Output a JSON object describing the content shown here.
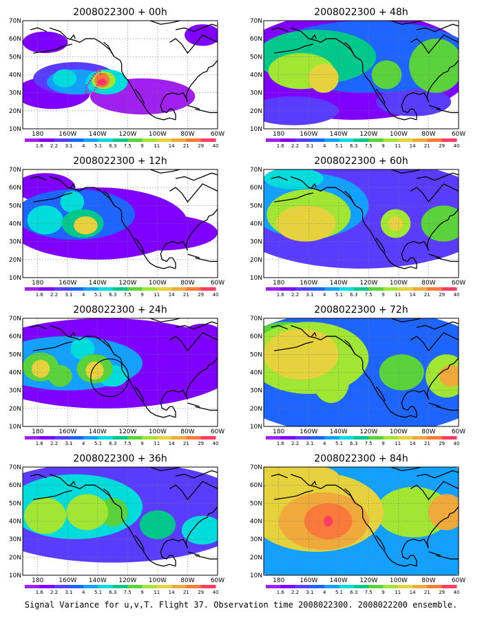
{
  "caption": "Signal Variance for u,v,T. Flight 37. Observation time 2008022300. 2008022200 ensemble.",
  "chart_data": {
    "type": "heatmap",
    "grid": "dotted",
    "colorbar": {
      "levels": [
        "1.6",
        "2.2",
        "3.1",
        "4",
        "5.1",
        "6.3",
        "7.5",
        "9",
        "11",
        "14",
        "21",
        "29",
        "40"
      ],
      "colors": [
        "#ffffff",
        "#a020f0",
        "#7f00ff",
        "#5a3cff",
        "#1e64ff",
        "#14a0ff",
        "#00dcdc",
        "#00c88c",
        "#5ad23c",
        "#a0e632",
        "#e6d23c",
        "#f0aa3c",
        "#fa7a3c",
        "#ff3c64"
      ]
    },
    "x_ticks": [
      "180",
      "160W",
      "140W",
      "120W",
      "100W",
      "80W",
      "60W"
    ],
    "y_ticks": [
      "10N",
      "20N",
      "30N",
      "40N",
      "50N",
      "60N",
      "70N"
    ],
    "xlim": [
      170,
      300
    ],
    "ylim": [
      10,
      70
    ],
    "panels": [
      {
        "title": "2008022300 + 00h",
        "blobs": [
          {
            "x": 190,
            "y": 30,
            "rx": 25,
            "ry": 9,
            "v": 2
          },
          {
            "x": 250,
            "y": 28,
            "rx": 35,
            "ry": 10,
            "v": 1
          },
          {
            "x": 185,
            "y": 58,
            "rx": 15,
            "ry": 6,
            "v": 2
          },
          {
            "x": 290,
            "y": 62,
            "rx": 12,
            "ry": 6,
            "v": 2
          },
          {
            "x": 205,
            "y": 38,
            "rx": 28,
            "ry": 9,
            "v": 3
          },
          {
            "x": 206,
            "y": 36,
            "rx": 20,
            "ry": 7,
            "v": 5
          },
          {
            "x": 198,
            "y": 38,
            "rx": 8,
            "ry": 5,
            "v": 6
          },
          {
            "x": 226,
            "y": 36,
            "rx": 14,
            "ry": 7,
            "v": 6
          },
          {
            "x": 224,
            "y": 37,
            "rx": 8,
            "ry": 5,
            "v": 9
          },
          {
            "x": 223,
            "y": 37,
            "rx": 5,
            "ry": 4,
            "v": 12
          },
          {
            "x": 223,
            "y": 36,
            "rx": 3,
            "ry": 2,
            "v": 13
          }
        ],
        "track": [
          [
            222,
            40
          ],
          [
            221,
            43
          ],
          [
            217,
            39
          ],
          [
            213,
            34
          ],
          [
            212,
            30
          ],
          [
            216,
            29
          ],
          [
            219,
            33
          ],
          [
            221,
            36
          ]
        ]
      },
      {
        "title": "2008022300 + 48h",
        "blobs": [
          {
            "x": 230,
            "y": 45,
            "rx": 80,
            "ry": 30,
            "v": 2
          },
          {
            "x": 240,
            "y": 50,
            "rx": 70,
            "ry": 20,
            "v": 4
          },
          {
            "x": 205,
            "y": 50,
            "rx": 40,
            "ry": 15,
            "v": 7
          },
          {
            "x": 195,
            "y": 42,
            "rx": 22,
            "ry": 10,
            "v": 9
          },
          {
            "x": 210,
            "y": 38,
            "rx": 10,
            "ry": 8,
            "v": 10
          },
          {
            "x": 285,
            "y": 45,
            "rx": 18,
            "ry": 15,
            "v": 8
          },
          {
            "x": 252,
            "y": 40,
            "rx": 10,
            "ry": 8,
            "v": 8
          },
          {
            "x": 190,
            "y": 20,
            "rx": 30,
            "ry": 8,
            "v": 3
          },
          {
            "x": 270,
            "y": 25,
            "rx": 25,
            "ry": 8,
            "v": 3
          }
        ],
        "track": []
      },
      {
        "title": "2008022300 + 12h",
        "blobs": [
          {
            "x": 220,
            "y": 40,
            "rx": 60,
            "ry": 20,
            "v": 2
          },
          {
            "x": 185,
            "y": 60,
            "rx": 20,
            "ry": 8,
            "v": 2
          },
          {
            "x": 260,
            "y": 35,
            "rx": 40,
            "ry": 10,
            "v": 2
          },
          {
            "x": 205,
            "y": 45,
            "rx": 40,
            "ry": 14,
            "v": 4
          },
          {
            "x": 185,
            "y": 42,
            "rx": 12,
            "ry": 8,
            "v": 6
          },
          {
            "x": 210,
            "y": 40,
            "rx": 14,
            "ry": 8,
            "v": 7
          },
          {
            "x": 212,
            "y": 39,
            "rx": 8,
            "ry": 5,
            "v": 10
          },
          {
            "x": 203,
            "y": 52,
            "rx": 8,
            "ry": 6,
            "v": 6
          }
        ],
        "track": []
      },
      {
        "title": "2008022300 + 60h",
        "blobs": [
          {
            "x": 235,
            "y": 45,
            "rx": 90,
            "ry": 30,
            "v": 3
          },
          {
            "x": 200,
            "y": 50,
            "rx": 40,
            "ry": 18,
            "v": 5
          },
          {
            "x": 200,
            "y": 45,
            "rx": 28,
            "ry": 14,
            "v": 9
          },
          {
            "x": 198,
            "y": 40,
            "rx": 20,
            "ry": 10,
            "v": 10
          },
          {
            "x": 258,
            "y": 40,
            "rx": 10,
            "ry": 8,
            "v": 9
          },
          {
            "x": 258,
            "y": 40,
            "rx": 5,
            "ry": 4,
            "v": 10
          },
          {
            "x": 290,
            "y": 40,
            "rx": 15,
            "ry": 10,
            "v": 8
          },
          {
            "x": 190,
            "y": 65,
            "rx": 20,
            "ry": 6,
            "v": 6
          }
        ],
        "track": []
      },
      {
        "title": "2008022300 + 24h",
        "blobs": [
          {
            "x": 225,
            "y": 45,
            "rx": 90,
            "ry": 25,
            "v": 2
          },
          {
            "x": 200,
            "y": 45,
            "rx": 50,
            "ry": 15,
            "v": 5
          },
          {
            "x": 182,
            "y": 43,
            "rx": 12,
            "ry": 8,
            "v": 8
          },
          {
            "x": 182,
            "y": 42,
            "rx": 6,
            "ry": 5,
            "v": 10
          },
          {
            "x": 195,
            "y": 38,
            "rx": 8,
            "ry": 6,
            "v": 8
          },
          {
            "x": 218,
            "y": 42,
            "rx": 12,
            "ry": 8,
            "v": 8
          },
          {
            "x": 218,
            "y": 41,
            "rx": 6,
            "ry": 5,
            "v": 10
          },
          {
            "x": 210,
            "y": 53,
            "rx": 8,
            "ry": 6,
            "v": 6
          },
          {
            "x": 230,
            "y": 38,
            "rx": 10,
            "ry": 6,
            "v": 6
          },
          {
            "x": 290,
            "y": 62,
            "rx": 12,
            "ry": 5,
            "v": 2
          }
        ],
        "track": [],
        "circle": {
          "x": 228,
          "y": 37,
          "r": 9
        }
      },
      {
        "title": "2008022300 + 72h",
        "blobs": [
          {
            "x": 235,
            "y": 40,
            "rx": 95,
            "ry": 35,
            "v": 4
          },
          {
            "x": 200,
            "y": 48,
            "rx": 40,
            "ry": 20,
            "v": 9
          },
          {
            "x": 195,
            "y": 50,
            "rx": 25,
            "ry": 14,
            "v": 10
          },
          {
            "x": 215,
            "y": 35,
            "rx": 12,
            "ry": 12,
            "v": 9
          },
          {
            "x": 262,
            "y": 40,
            "rx": 15,
            "ry": 10,
            "v": 8
          },
          {
            "x": 292,
            "y": 38,
            "rx": 14,
            "ry": 12,
            "v": 9
          },
          {
            "x": 295,
            "y": 38,
            "rx": 8,
            "ry": 6,
            "v": 11
          },
          {
            "x": 185,
            "y": 60,
            "rx": 20,
            "ry": 8,
            "v": 8
          }
        ],
        "track": []
      },
      {
        "title": "2008022300 + 36h",
        "blobs": [
          {
            "x": 230,
            "y": 45,
            "rx": 95,
            "ry": 28,
            "v": 3
          },
          {
            "x": 205,
            "y": 48,
            "rx": 45,
            "ry": 18,
            "v": 6
          },
          {
            "x": 185,
            "y": 43,
            "rx": 14,
            "ry": 10,
            "v": 9
          },
          {
            "x": 213,
            "y": 45,
            "rx": 14,
            "ry": 10,
            "v": 9
          },
          {
            "x": 230,
            "y": 45,
            "rx": 10,
            "ry": 8,
            "v": 8
          },
          {
            "x": 260,
            "y": 38,
            "rx": 12,
            "ry": 8,
            "v": 7
          },
          {
            "x": 290,
            "y": 35,
            "rx": 14,
            "ry": 8,
            "v": 6
          }
        ],
        "track": []
      },
      {
        "title": "2008022300 + 84h",
        "blobs": [
          {
            "x": 235,
            "y": 40,
            "rx": 95,
            "ry": 40,
            "v": 5
          },
          {
            "x": 205,
            "y": 45,
            "rx": 45,
            "ry": 22,
            "v": 10
          },
          {
            "x": 210,
            "y": 40,
            "rx": 30,
            "ry": 16,
            "v": 11
          },
          {
            "x": 213,
            "y": 40,
            "rx": 16,
            "ry": 10,
            "v": 12
          },
          {
            "x": 213,
            "y": 40,
            "rx": 3,
            "ry": 3,
            "v": 13
          },
          {
            "x": 270,
            "y": 45,
            "rx": 25,
            "ry": 14,
            "v": 9
          },
          {
            "x": 292,
            "y": 45,
            "rx": 12,
            "ry": 10,
            "v": 11
          },
          {
            "x": 190,
            "y": 65,
            "rx": 30,
            "ry": 7,
            "v": 10
          }
        ],
        "track": []
      }
    ]
  }
}
